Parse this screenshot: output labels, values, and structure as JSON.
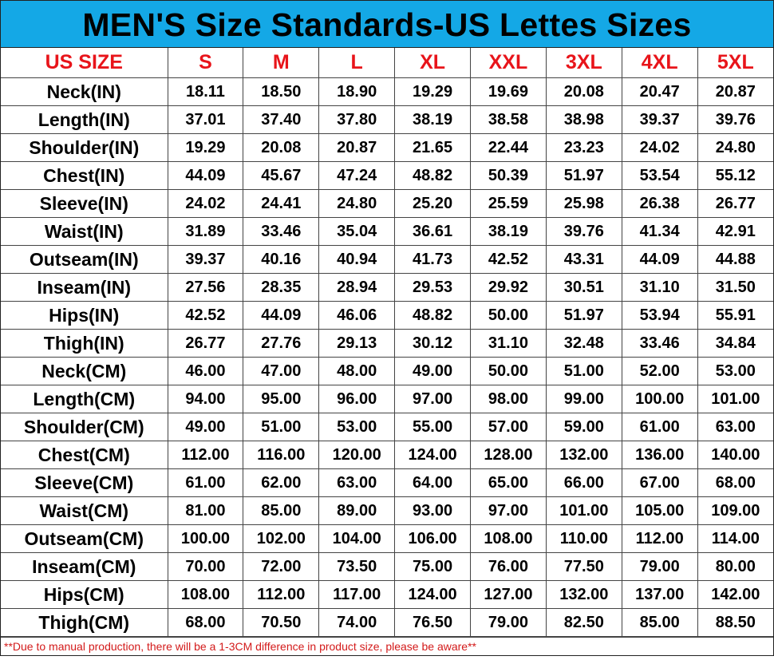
{
  "title": "MEN'S Size Standards-US Lettes Sizes",
  "colors": {
    "title_bg": "#14a8e6",
    "header_text": "#e8141a",
    "note_text": "#d31a1a"
  },
  "header": [
    "US SIZE",
    "S",
    "M",
    "L",
    "XL",
    "XXL",
    "3XL",
    "4XL",
    "5XL"
  ],
  "rows": [
    {
      "label": "Neck(IN)",
      "values": [
        "18.11",
        "18.50",
        "18.90",
        "19.29",
        "19.69",
        "20.08",
        "20.47",
        "20.87"
      ]
    },
    {
      "label": "Length(IN)",
      "values": [
        "37.01",
        "37.40",
        "37.80",
        "38.19",
        "38.58",
        "38.98",
        "39.37",
        "39.76"
      ]
    },
    {
      "label": "Shoulder(IN)",
      "values": [
        "19.29",
        "20.08",
        "20.87",
        "21.65",
        "22.44",
        "23.23",
        "24.02",
        "24.80"
      ]
    },
    {
      "label": "Chest(IN)",
      "values": [
        "44.09",
        "45.67",
        "47.24",
        "48.82",
        "50.39",
        "51.97",
        "53.54",
        "55.12"
      ]
    },
    {
      "label": "Sleeve(IN)",
      "values": [
        "24.02",
        "24.41",
        "24.80",
        "25.20",
        "25.59",
        "25.98",
        "26.38",
        "26.77"
      ]
    },
    {
      "label": "Waist(IN)",
      "values": [
        "31.89",
        "33.46",
        "35.04",
        "36.61",
        "38.19",
        "39.76",
        "41.34",
        "42.91"
      ]
    },
    {
      "label": "Outseam(IN)",
      "values": [
        "39.37",
        "40.16",
        "40.94",
        "41.73",
        "42.52",
        "43.31",
        "44.09",
        "44.88"
      ]
    },
    {
      "label": "Inseam(IN)",
      "values": [
        "27.56",
        "28.35",
        "28.94",
        "29.53",
        "29.92",
        "30.51",
        "31.10",
        "31.50"
      ]
    },
    {
      "label": "Hips(IN)",
      "values": [
        "42.52",
        "44.09",
        "46.06",
        "48.82",
        "50.00",
        "51.97",
        "53.94",
        "55.91"
      ]
    },
    {
      "label": "Thigh(IN)",
      "values": [
        "26.77",
        "27.76",
        "29.13",
        "30.12",
        "31.10",
        "32.48",
        "33.46",
        "34.84"
      ]
    },
    {
      "label": "Neck(CM)",
      "values": [
        "46.00",
        "47.00",
        "48.00",
        "49.00",
        "50.00",
        "51.00",
        "52.00",
        "53.00"
      ]
    },
    {
      "label": "Length(CM)",
      "values": [
        "94.00",
        "95.00",
        "96.00",
        "97.00",
        "98.00",
        "99.00",
        "100.00",
        "101.00"
      ]
    },
    {
      "label": "Shoulder(CM)",
      "values": [
        "49.00",
        "51.00",
        "53.00",
        "55.00",
        "57.00",
        "59.00",
        "61.00",
        "63.00"
      ]
    },
    {
      "label": "Chest(CM)",
      "values": [
        "112.00",
        "116.00",
        "120.00",
        "124.00",
        "128.00",
        "132.00",
        "136.00",
        "140.00"
      ]
    },
    {
      "label": "Sleeve(CM)",
      "values": [
        "61.00",
        "62.00",
        "63.00",
        "64.00",
        "65.00",
        "66.00",
        "67.00",
        "68.00"
      ]
    },
    {
      "label": "Waist(CM)",
      "values": [
        "81.00",
        "85.00",
        "89.00",
        "93.00",
        "97.00",
        "101.00",
        "105.00",
        "109.00"
      ]
    },
    {
      "label": "Outseam(CM)",
      "values": [
        "100.00",
        "102.00",
        "104.00",
        "106.00",
        "108.00",
        "110.00",
        "112.00",
        "114.00"
      ]
    },
    {
      "label": "Inseam(CM)",
      "values": [
        "70.00",
        "72.00",
        "73.50",
        "75.00",
        "76.00",
        "77.50",
        "79.00",
        "80.00"
      ]
    },
    {
      "label": "Hips(CM)",
      "values": [
        "108.00",
        "112.00",
        "117.00",
        "124.00",
        "127.00",
        "132.00",
        "137.00",
        "142.00"
      ]
    },
    {
      "label": "Thigh(CM)",
      "values": [
        "68.00",
        "70.50",
        "74.00",
        "76.50",
        "79.00",
        "82.50",
        "85.00",
        "88.50"
      ]
    }
  ],
  "note": "**Due to manual production, there will be a 1-3CM difference in product size, please be aware**"
}
